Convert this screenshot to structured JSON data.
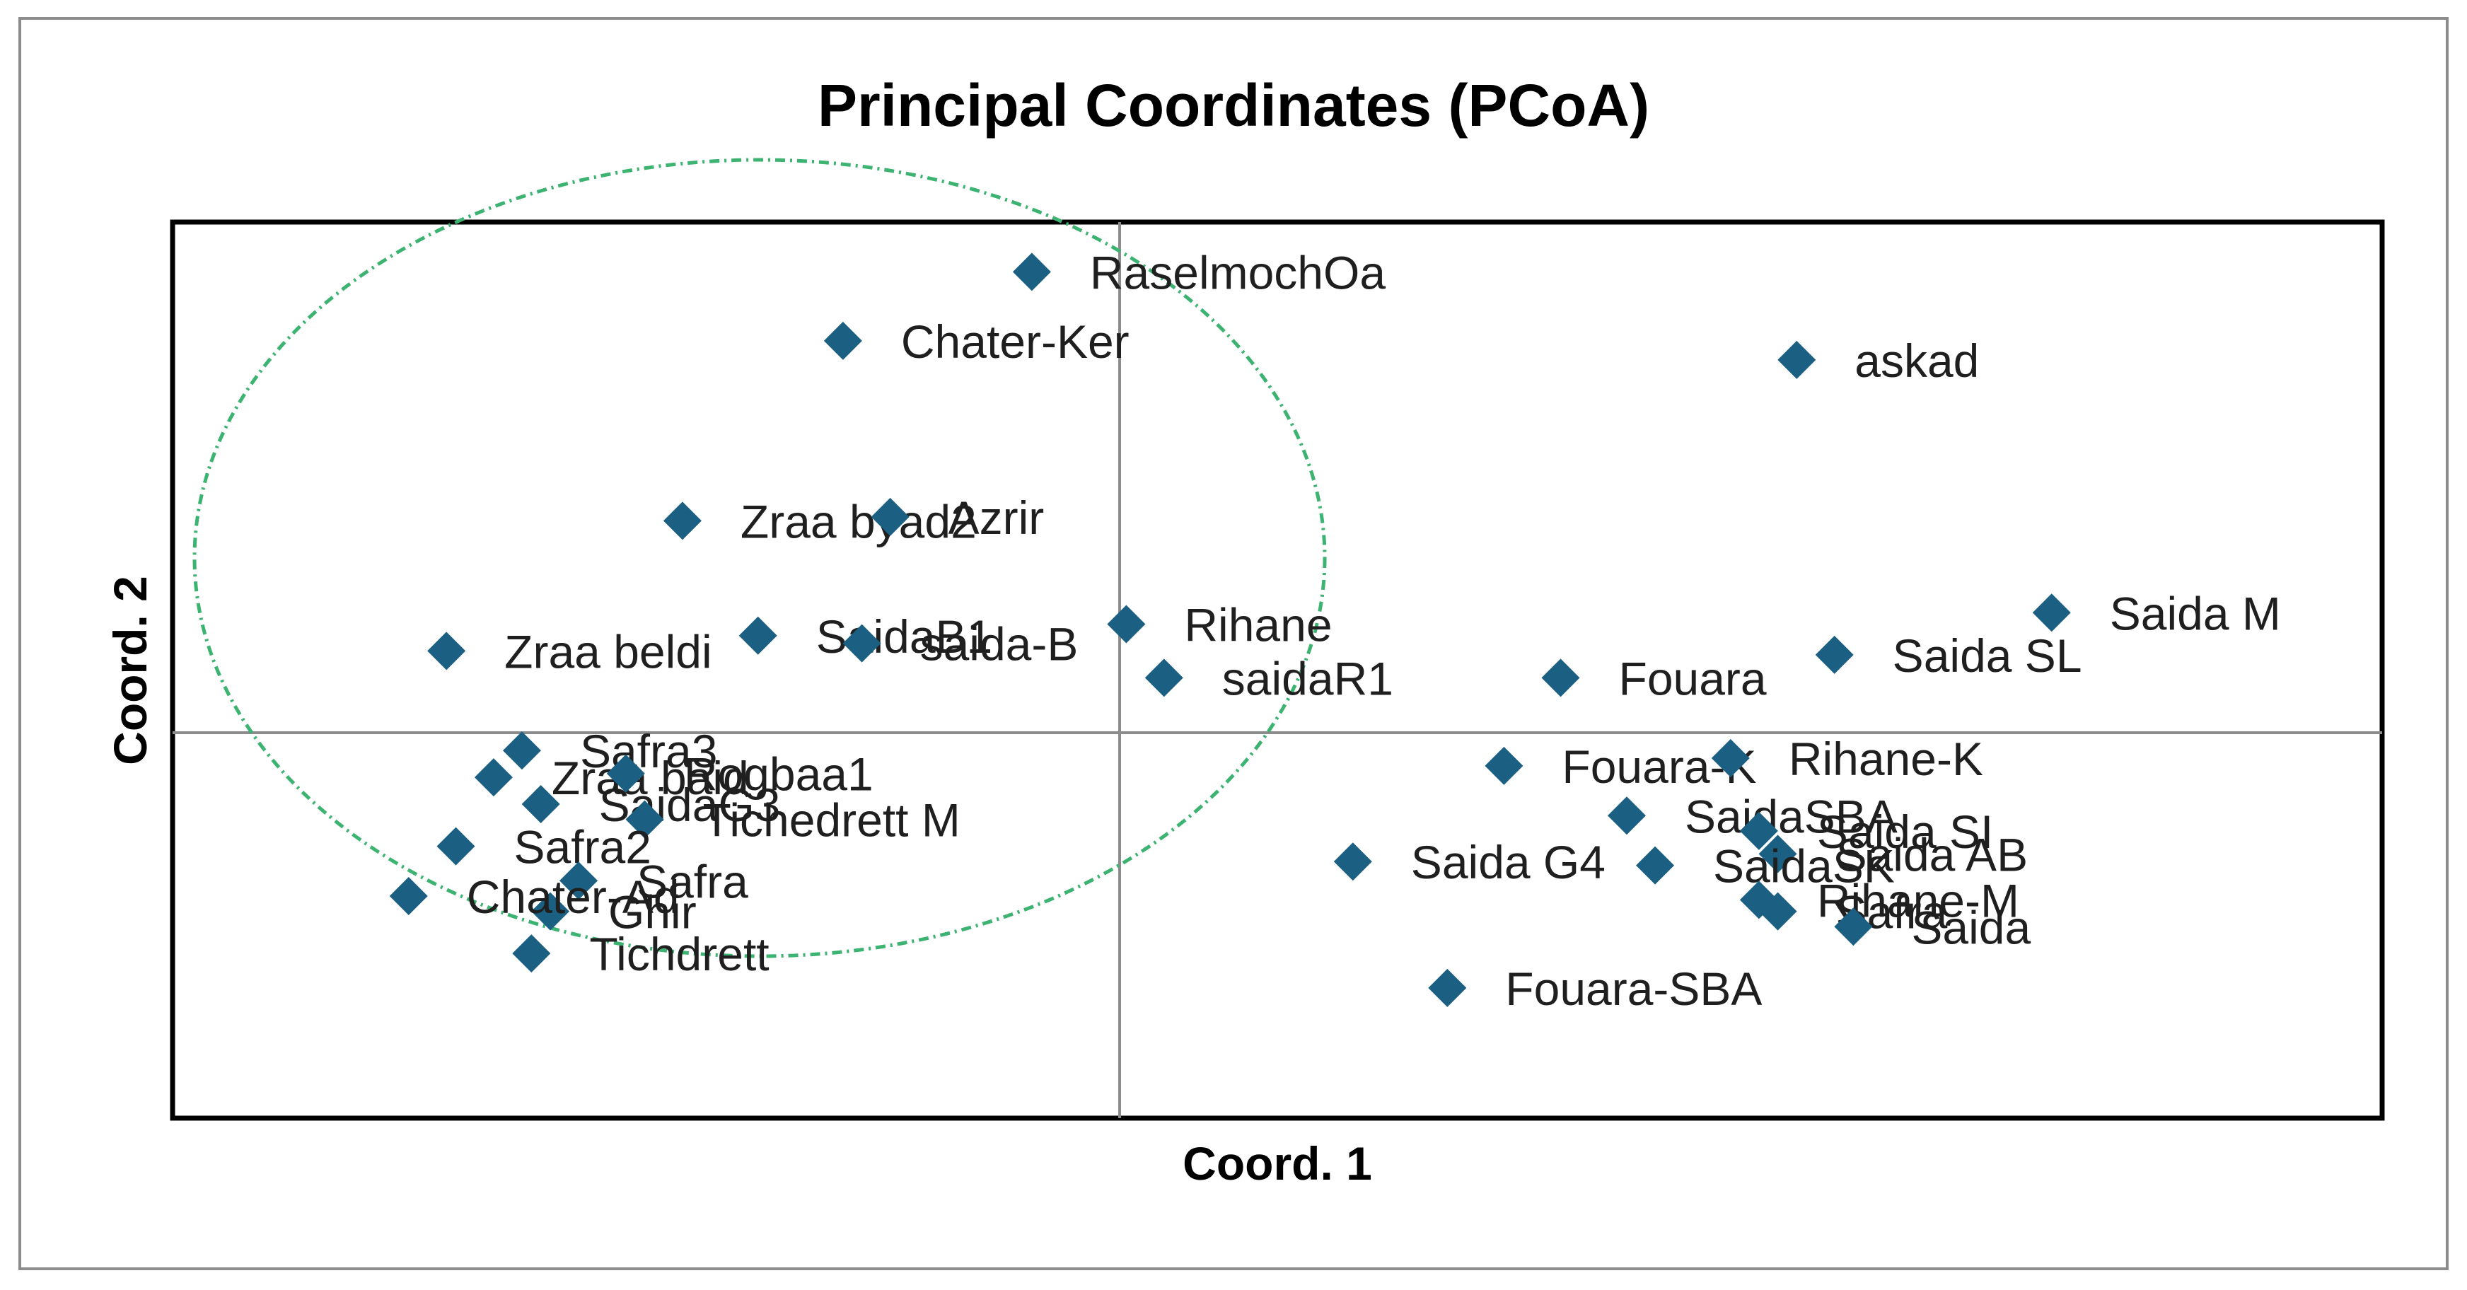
{
  "chart_data": {
    "type": "scatter",
    "title": "Principal Coordinates (PCoA)",
    "xlabel": "Coord. 1",
    "ylabel": "Coord. 2",
    "xlim": [
      -1,
      1.34
    ],
    "ylim": [
      -1,
      1.34
    ],
    "grid": false,
    "legend": "none",
    "marker_color": "#1b5f82",
    "ellipse_color": "#3cb371",
    "points": [
      {
        "label": "RaselmochOa",
        "x": -0.09,
        "y": 1.21
      },
      {
        "label": "Chater-Ker",
        "x": -0.29,
        "y": 1.03
      },
      {
        "label": "askad",
        "x": 0.72,
        "y": 0.98
      },
      {
        "label": "Zraa byad2",
        "x": -0.46,
        "y": 0.56
      },
      {
        "label": "Azrir",
        "x": -0.24,
        "y": 0.57
      },
      {
        "label": "Zraa beldi",
        "x": -0.71,
        "y": 0.22
      },
      {
        "label": "SaidaB1",
        "x": -0.38,
        "y": 0.26
      },
      {
        "label": "saida-B",
        "x": -0.27,
        "y": 0.24
      },
      {
        "label": "Rihane",
        "x": 0.01,
        "y": 0.29
      },
      {
        "label": "saidaR1",
        "x": 0.05,
        "y": 0.15
      },
      {
        "label": "Fouara",
        "x": 0.47,
        "y": 0.15
      },
      {
        "label": "Saida SL",
        "x": 0.76,
        "y": 0.21
      },
      {
        "label": "Saida M",
        "x": 0.99,
        "y": 0.32
      },
      {
        "label": "Safra3",
        "x": -0.63,
        "y": -0.04
      },
      {
        "label": "Zraa baid",
        "x": -0.66,
        "y": -0.11
      },
      {
        "label": "SaidaG3",
        "x": -0.61,
        "y": -0.18
      },
      {
        "label": "Rogbaa1",
        "x": -0.52,
        "y": -0.1
      },
      {
        "label": "Tichedrett M",
        "x": -0.5,
        "y": -0.22
      },
      {
        "label": "Safra2",
        "x": -0.7,
        "y": -0.29
      },
      {
        "label": "Safra",
        "x": -0.57,
        "y": -0.38
      },
      {
        "label": "Ghir",
        "x": -0.6,
        "y": -0.46
      },
      {
        "label": "Chater-Ad",
        "x": -0.75,
        "y": -0.42
      },
      {
        "label": "Tichdrett",
        "x": -0.62,
        "y": -0.57
      },
      {
        "label": "Fouara-K",
        "x": 0.41,
        "y": -0.08
      },
      {
        "label": "Rihane-K",
        "x": 0.65,
        "y": -0.06
      },
      {
        "label": "SaidaSBA",
        "x": 0.54,
        "y": -0.21
      },
      {
        "label": "Saida SI",
        "x": 0.68,
        "y": -0.25
      },
      {
        "label": "Saida AB",
        "x": 0.7,
        "y": -0.31
      },
      {
        "label": "Saida G4",
        "x": 0.25,
        "y": -0.33
      },
      {
        "label": "SaidaSK",
        "x": 0.57,
        "y": -0.34
      },
      {
        "label": "Rihane-M",
        "x": 0.68,
        "y": -0.43
      },
      {
        "label": "Safra",
        "x": 0.7,
        "y": -0.46
      },
      {
        "label": "Saida",
        "x": 0.78,
        "y": -0.5
      },
      {
        "label": "Fouara-SBA",
        "x": 0.35,
        "y": -0.66
      }
    ]
  }
}
